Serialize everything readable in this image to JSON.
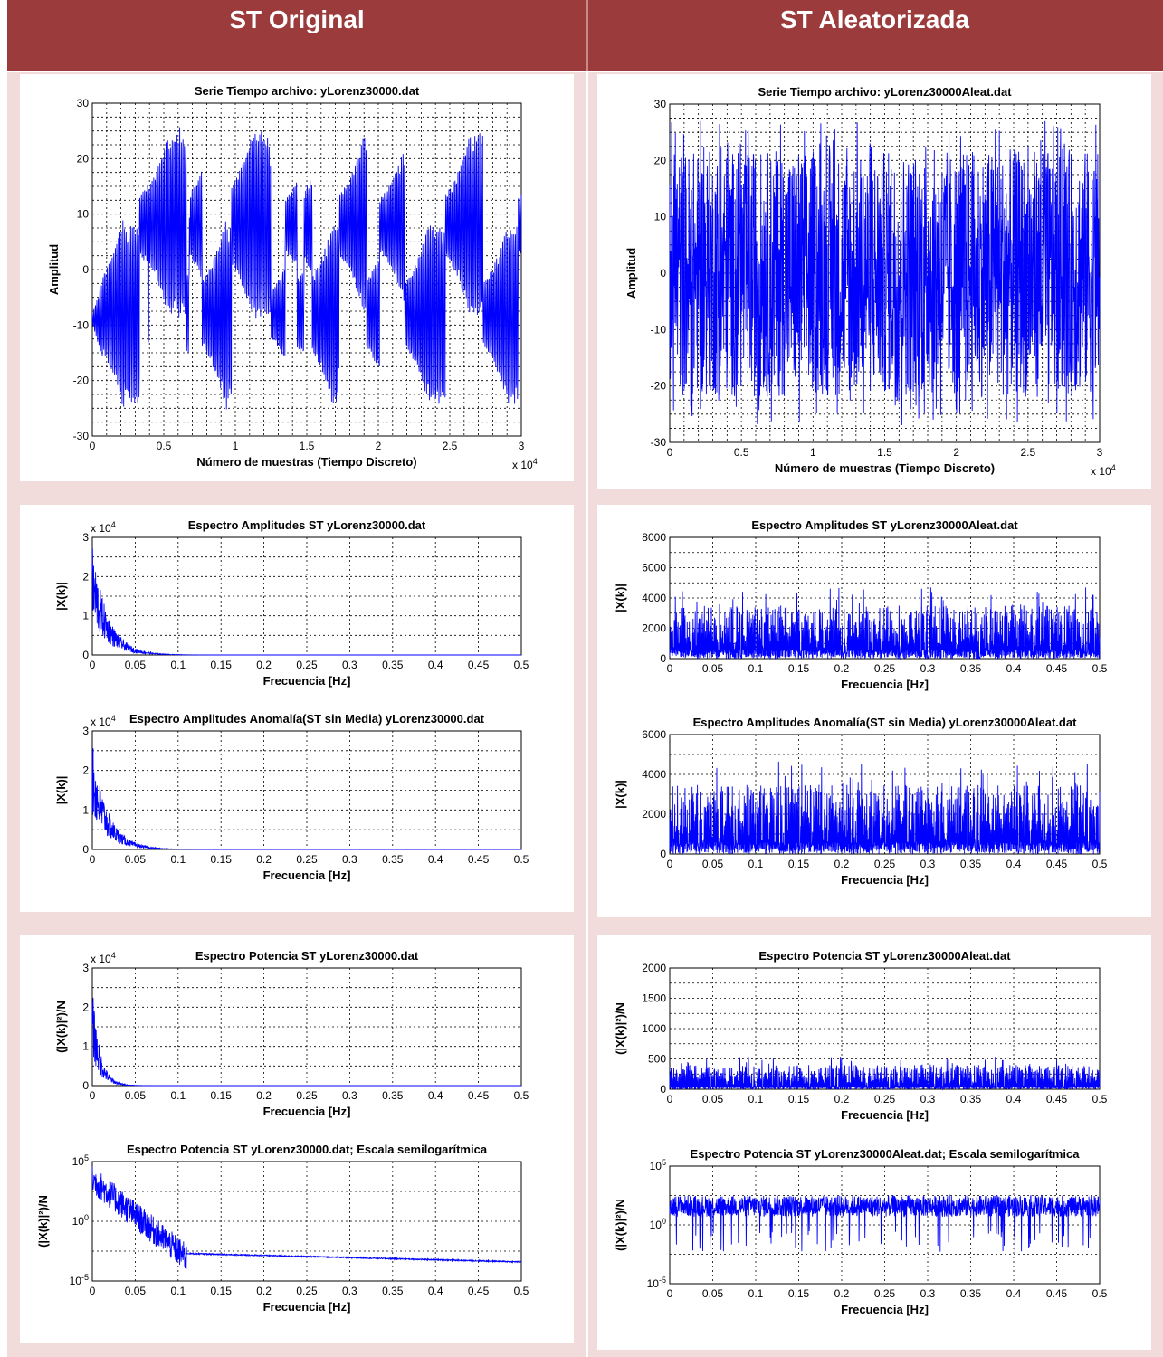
{
  "header": {
    "left_title": "ST Original",
    "right_title": "ST Aleatorizada"
  },
  "colors": {
    "header_bg": "#9b3b3b",
    "cell_bg": "#f2dcdb",
    "series": "#0000ff"
  },
  "chart_data": [
    {
      "type": "line",
      "title": "Serie Tiempo archivo:  yLorenz30000.dat",
      "xlabel": "Número de muestras (Tiempo Discreto)",
      "ylabel": "Amplitud",
      "xlim": [
        0,
        3
      ],
      "ylim": [
        -30,
        30
      ],
      "xticks": [
        "0",
        "0.5",
        "1",
        "1.5",
        "2",
        "2.5",
        "3"
      ],
      "yticks": [
        "-30",
        "-20",
        "-10",
        "0",
        "10",
        "20",
        "30"
      ],
      "x_exponent": "x 10^4",
      "grid": true,
      "signal": "lorenz"
    },
    {
      "type": "line",
      "title": "Serie Tiempo archivo:  yLorenz30000Aleat.dat",
      "xlabel": "Número de muestras (Tiempo Discreto)",
      "ylabel": "Amplitud",
      "xlim": [
        0,
        3
      ],
      "ylim": [
        -30,
        30
      ],
      "xticks": [
        "0",
        "0.5",
        "1",
        "1.5",
        "2",
        "2.5",
        "3"
      ],
      "yticks": [
        "-30",
        "-20",
        "-10",
        "0",
        "10",
        "20",
        "30"
      ],
      "x_exponent": "x 10^4",
      "grid": true,
      "signal": "noise"
    },
    {
      "type": "line",
      "title": "Espectro Amplitudes ST  yLorenz30000.dat",
      "xlabel": "Frecuencia [Hz]",
      "ylabel": "|X(k)|",
      "xlim": [
        0,
        0.5
      ],
      "ylim": [
        0,
        3
      ],
      "xticks": [
        "0",
        "0.05",
        "0.1",
        "0.15",
        "0.2",
        "0.25",
        "0.3",
        "0.35",
        "0.4",
        "0.45",
        "0.5"
      ],
      "yticks": [
        "0",
        "1",
        "2",
        "3"
      ],
      "y_exponent": "x 10^4",
      "grid": true,
      "signal": "decay",
      "peak": 2.8
    },
    {
      "type": "line",
      "title": "Espectro Amplitudes ST  yLorenz30000Aleat.dat",
      "xlabel": "Frecuencia [Hz]",
      "ylabel": "|X(k)|",
      "xlim": [
        0,
        0.5
      ],
      "ylim": [
        0,
        8000
      ],
      "xticks": [
        "0",
        "0.05",
        "0.1",
        "0.15",
        "0.2",
        "0.25",
        "0.3",
        "0.35",
        "0.4",
        "0.45",
        "0.5"
      ],
      "yticks": [
        "0",
        "2000",
        "4000",
        "6000",
        "8000"
      ],
      "grid": true,
      "signal": "flat",
      "level": [
        2000,
        3500
      ]
    },
    {
      "type": "line",
      "title": "Espectro Amplitudes Anomalía(ST sin Media) yLorenz30000.dat",
      "xlabel": "Frecuencia [Hz]",
      "ylabel": "|X(k)|",
      "xlim": [
        0,
        0.5
      ],
      "ylim": [
        0,
        3
      ],
      "xticks": [
        "0",
        "0.05",
        "0.1",
        "0.15",
        "0.2",
        "0.25",
        "0.3",
        "0.35",
        "0.4",
        "0.45",
        "0.5"
      ],
      "yticks": [
        "0",
        "1",
        "2",
        "3"
      ],
      "y_exponent": "x 10^4",
      "grid": true,
      "signal": "decay",
      "peak": 2.7
    },
    {
      "type": "line",
      "title": "Espectro Amplitudes Anomalía(ST sin Media) yLorenz30000Aleat.dat",
      "xlabel": "Frecuencia [Hz]",
      "ylabel": "|X(k)|",
      "xlim": [
        0,
        0.5
      ],
      "ylim": [
        0,
        6000
      ],
      "xticks": [
        "0",
        "0.05",
        "0.1",
        "0.15",
        "0.2",
        "0.25",
        "0.3",
        "0.35",
        "0.4",
        "0.45",
        "0.5"
      ],
      "yticks": [
        "0",
        "2000",
        "4000",
        "6000"
      ],
      "grid": true,
      "signal": "flat",
      "level": [
        2000,
        3500
      ]
    },
    {
      "type": "line",
      "title": "Espectro Potencia ST  yLorenz30000.dat",
      "xlabel": "Frecuencia [Hz]",
      "ylabel": "(|X(k)|²)/N",
      "xlim": [
        0,
        0.5
      ],
      "ylim": [
        0,
        3
      ],
      "xticks": [
        "0",
        "0.05",
        "0.1",
        "0.15",
        "0.2",
        "0.25",
        "0.3",
        "0.35",
        "0.4",
        "0.45",
        "0.5"
      ],
      "yticks": [
        "0",
        "1",
        "2",
        "3"
      ],
      "y_exponent": "x 10^4",
      "grid": true,
      "signal": "decay_fast",
      "peak": 2.5
    },
    {
      "type": "line",
      "title": "Espectro Potencia ST  yLorenz30000Aleat.dat",
      "xlabel": "Frecuencia [Hz]",
      "ylabel": "(|X(k)|²)/N",
      "xlim": [
        0,
        0.5
      ],
      "ylim": [
        0,
        2000
      ],
      "xticks": [
        "0",
        "0.05",
        "0.1",
        "0.15",
        "0.2",
        "0.25",
        "0.3",
        "0.35",
        "0.4",
        "0.45",
        "0.5"
      ],
      "yticks": [
        "0",
        "500",
        "1000",
        "1500",
        "2000"
      ],
      "grid": true,
      "signal": "flat",
      "level": [
        150,
        400
      ]
    },
    {
      "type": "line",
      "title": "Espectro Potencia ST  yLorenz30000.dat; Escala semilogarítmica",
      "xlabel": "Frecuencia [Hz]",
      "ylabel": "(|X(k)|²)/N",
      "xlim": [
        0,
        0.5
      ],
      "ylim": [
        -5,
        5
      ],
      "yscale": "log",
      "xticks": [
        "0",
        "0.05",
        "0.1",
        "0.15",
        "0.2",
        "0.25",
        "0.3",
        "0.35",
        "0.4",
        "0.45",
        "0.5"
      ],
      "yticks": [
        "10^-5",
        "10^0",
        "10^5"
      ],
      "grid": true,
      "signal": "logdecay"
    },
    {
      "type": "line",
      "title": "Espectro Potencia ST  yLorenz30000Aleat.dat; Escala semilogarítmica",
      "xlabel": "Frecuencia [Hz]",
      "ylabel": "(|X(k)|²)/N",
      "xlim": [
        0,
        0.5
      ],
      "ylim": [
        -5,
        5
      ],
      "yscale": "log",
      "xticks": [
        "0",
        "0.05",
        "0.1",
        "0.15",
        "0.2",
        "0.25",
        "0.3",
        "0.35",
        "0.4",
        "0.45",
        "0.5"
      ],
      "yticks": [
        "10^-5",
        "10^0",
        "10^5"
      ],
      "grid": true,
      "signal": "lognoise"
    }
  ]
}
